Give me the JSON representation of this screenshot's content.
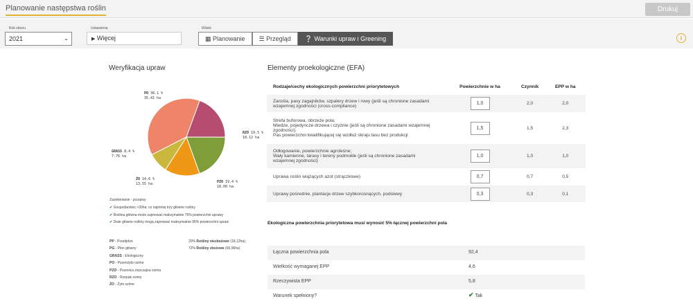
{
  "header": {
    "tab_title": "Planowanie następstwa roślin",
    "print_label": "Drukuj"
  },
  "filters": {
    "year_label": "Rok zbioru",
    "year_value": "2021",
    "settings_label": "Ustawienia",
    "settings_value": "Więcej",
    "view_label": "Widok",
    "view_buttons": [
      "Planowanie",
      "Przegląd",
      "Warunki upraw i Greening"
    ],
    "active_view": "Warunki upraw i Greening"
  },
  "verification": {
    "title": "Weryfikacja upraw",
    "pie": [
      {
        "key": "PO",
        "pct": "38.1 %",
        "ha": "35.41 ha",
        "value": 38.1,
        "color": "#ef8568"
      },
      {
        "key": "RZO",
        "pct": "19.5 %",
        "ha": "18.12 ha",
        "value": 19.5,
        "color": "#b64d70"
      },
      {
        "key": "PZO",
        "pct": "19.4 %",
        "ha": "18.00 ha",
        "value": 19.4,
        "color": "#7f9e3a"
      },
      {
        "key": "ŻO",
        "pct": "14.6 %",
        "ha": "13.55 ha",
        "value": 14.6,
        "color": "#ee9816"
      },
      {
        "key": "GRASS",
        "pct": "8.4 %",
        "ha": "7.76 ha",
        "value": 8.4,
        "color": "#cab73d"
      }
    ],
    "greening_title": "Zazielenianie - przepisy",
    "checks": [
      "Gospodarstwo >30ha: co najmniej trzy główne rośliny",
      "Roślina główna może zajmować maksymalnie 75% powierzchni uprawy",
      "Dwie główne rośliny mogą zajmować maksymalnie 95% powierzchni upraw"
    ],
    "abbreviations": [
      {
        "k": "PP",
        "v": "Przedplon"
      },
      {
        "k": "PG",
        "v": "Plon główny"
      },
      {
        "k": "GRASS",
        "v": "Ekologiczny"
      },
      {
        "k": "PO",
        "v": "Pszenżyto ozime"
      },
      {
        "k": "PZO",
        "v": "Pszenica zwyczajna ozima"
      },
      {
        "k": "RZO",
        "v": "Rzepak ozimy"
      },
      {
        "k": "ŻO",
        "v": "Żyto ozime"
      }
    ],
    "share_legend": [
      {
        "pct": "20%",
        "name": "Rośliny niezbożowe",
        "detail": "(18,12ha);"
      },
      {
        "pct": "72%",
        "name": "Rośliny zbożowe",
        "detail": "(66,96ha)"
      }
    ]
  },
  "efa": {
    "title": "Elementy proekologiczne (EFA)",
    "columns": [
      "Rodzaje/cechy ekologicznych powierzchni priorytetowych",
      "Powierzchnie w ha",
      "Czynnik",
      "EPP w ha"
    ],
    "rows": [
      {
        "lines": [
          "Zarośla, pasy zagajników, szpalery drzew i rowy (jeśli są chronione zasadami",
          "wzajemnej zgodności (cross-compliance)"
        ],
        "area": "1,0",
        "factor": "2,0",
        "epp": "2,0"
      },
      {
        "lines": [
          "Strefa buforowa, obrzeże pola;",
          "Miedze, pojedyncze drzewa i czyżnie (jeśli są chronione zasadami wzajemnej",
          "zgodności);",
          "Pas powierzchni kwalifikującej się wzdłuż skraju lasu bez produkcji"
        ],
        "area": "1,5",
        "factor": "1,5",
        "epp": "2,3"
      },
      {
        "lines": [
          "Odłogowanie, powierzchnie agroleśne;",
          "Wały kamienne, tarasy i tereny podmokłe (jeśli są chronione zasadami",
          "wzajemnej zgodności)"
        ],
        "area": "1,0",
        "factor": "1,0",
        "epp": "1,0"
      },
      {
        "lines": [
          "Uprawa roślin wiążących azot (strączkowe)"
        ],
        "area": "0,7",
        "factor": "0,7",
        "epp": "0,5"
      },
      {
        "lines": [
          "Uprawy pośrednie, plantacje drzew szybkorosnących, podsiewy"
        ],
        "area": "0,3",
        "factor": "0,3",
        "epp": "0,1"
      }
    ],
    "note": "Ekologiczna powierzchnia priorytetowa musi wynosić 5% łącznej powierzchni pola",
    "summary": [
      {
        "label": "Łączna powierzchnia pola",
        "value": "92,4"
      },
      {
        "label": "Wielkość wymaganej EPP",
        "value": "4,6"
      },
      {
        "label": "Rzeczywista EPP",
        "value": "5,8"
      },
      {
        "label": "Warunek spełniony?",
        "value": "Tak"
      }
    ]
  }
}
